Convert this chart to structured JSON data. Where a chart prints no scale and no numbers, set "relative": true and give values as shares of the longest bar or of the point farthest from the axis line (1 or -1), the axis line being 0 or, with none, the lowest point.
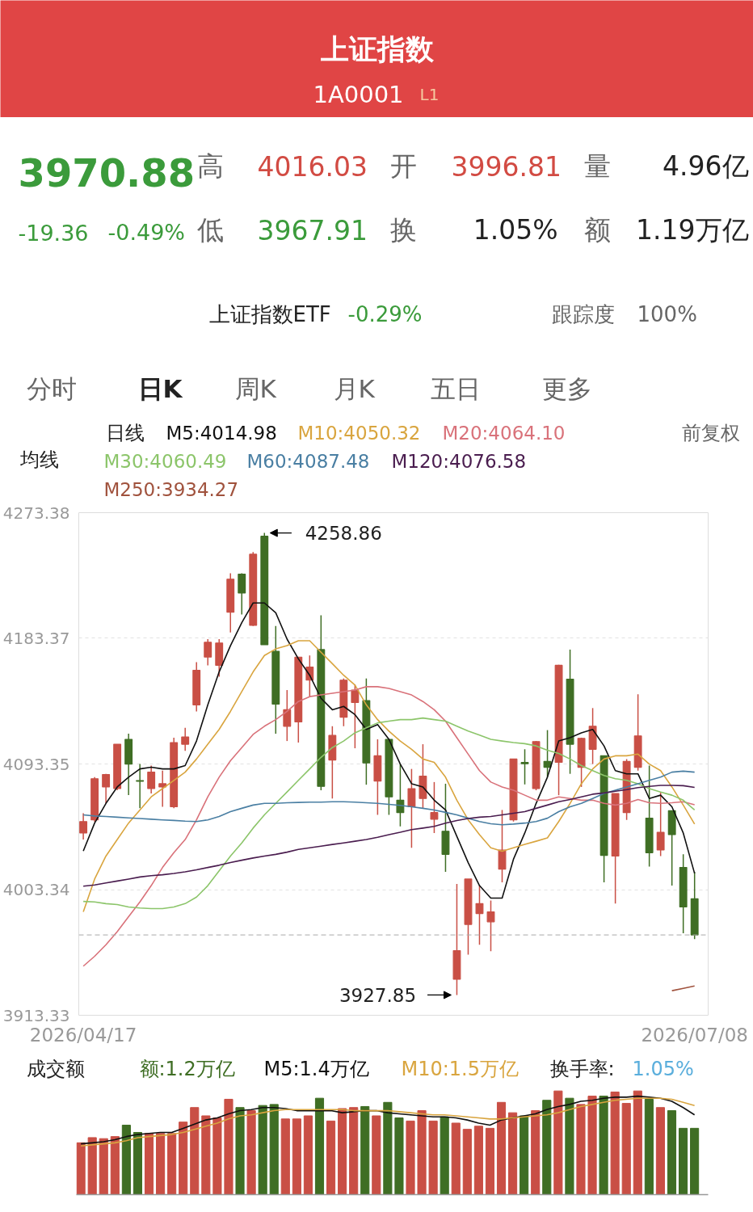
{
  "chart_data": [
    {
      "type": "other",
      "title": "上证指数",
      "subtitle": "1A0001",
      "annotations": [
        "L1",
        "3970.88",
        "-19.36",
        "-0.49%",
        "高",
        "4016.03",
        "开",
        "3996.81",
        "量",
        "4.96亿",
        "低",
        "3967.91",
        "换",
        "1.05%",
        "额",
        "1.19万亿",
        "上证指数ETF",
        "-0.29%",
        "跟踪度",
        "100%",
        "分时",
        "日K",
        "周K",
        "月K",
        "五日",
        "更多"
      ]
    },
    {
      "type": "candlestick",
      "categories": [
        "2026/04/17",
        null,
        null,
        null,
        null,
        null,
        null,
        null,
        null,
        null,
        null,
        null,
        null,
        null,
        null,
        null,
        null,
        null,
        null,
        null,
        null,
        null,
        null,
        null,
        null,
        null,
        null,
        null,
        null,
        null,
        null,
        null,
        null,
        null,
        null,
        null,
        null,
        null,
        null,
        null,
        null,
        null,
        null,
        null,
        null,
        null,
        null,
        null,
        null,
        null,
        null,
        null,
        null,
        null,
        "2026/07/08"
      ],
      "ohlc": [
        [
          4043.9,
          4058.0,
          4039.2,
          4052.1
        ],
        [
          4053.3,
          4084.0,
          4052.0,
          4082.8
        ],
        [
          4076.9,
          4086.3,
          4065.1,
          4085.8
        ],
        [
          4075.7,
          4107.5,
          4074.5,
          4107.5
        ],
        [
          4111.0,
          4115.0,
          4071.0,
          4093.3
        ],
        [
          4081.5,
          4093.3,
          4061.6,
          4081.0
        ],
        [
          4075.7,
          4092.2,
          4072.2,
          4087.5
        ],
        [
          4076.9,
          4088.6,
          4062.7,
          4079.2
        ],
        [
          4062.7,
          4112.2,
          4061.6,
          4108.7
        ],
        [
          4107.5,
          4119.2,
          4102.8,
          4112.7
        ],
        [
          4135.7,
          4166.3,
          4131.0,
          4160.5
        ],
        [
          4169.9,
          4182.8,
          4164.0,
          4180.5
        ],
        [
          4164.0,
          4182.8,
          4155.8,
          4180.0
        ],
        [
          4202.1,
          4229.9,
          4187.5,
          4225.7
        ],
        [
          4229.4,
          4229.9,
          4200.5,
          4215.8
        ],
        [
          4192.7,
          4245.2,
          4192.2,
          4243.6
        ],
        [
          4256.5,
          4258.86,
          4178.8,
          4178.8
        ],
        [
          4174.1,
          4192.2,
          4115.0,
          4136.2
        ],
        [
          4120.4,
          4146.3,
          4109.8,
          4132.2
        ],
        [
          4123.5,
          4169.9,
          4108.7,
          4169.9
        ],
        [
          4153.4,
          4171.1,
          4141.6,
          4162.8
        ],
        [
          4175.3,
          4199.8,
          4074.5,
          4077.3
        ],
        [
          4096.2,
          4120.4,
          4068.6,
          4113.8
        ],
        [
          4126.8,
          4154.6,
          4120.4,
          4153.4
        ],
        [
          4137.4,
          4150.3,
          4104.6,
          4146.3
        ],
        [
          4138.8,
          4154.6,
          4078.5,
          4094.1
        ],
        [
          4081.1,
          4111.0,
          4056.9,
          4099.2
        ],
        [
          4111.0,
          4111.0,
          4056.9,
          4069.8
        ],
        [
          4067.4,
          4093.3,
          4048.6,
          4058.5
        ],
        [
          4062.7,
          4089.8,
          4033.3,
          4075.7
        ],
        [
          4068.6,
          4107.5,
          4061.6,
          4084.6
        ],
        [
          4053.8,
          4080.4,
          4043.9,
          4058.5
        ],
        [
          4045.1,
          4079.2,
          4016.1,
          4028.6
        ],
        [
          3939.1,
          4007.4,
          3927.85,
          3959.6
        ],
        [
          3978.4,
          4010.9,
          3956.8,
          4010.9
        ],
        [
          3986.2,
          4006.2,
          3963.8,
          3993.3
        ],
        [
          3980.3,
          3995.6,
          3959.2,
          3987.4
        ],
        [
          4018.0,
          4060.4,
          4008.6,
          4031.7
        ],
        [
          4053.3,
          4096.9,
          4052.1,
          4096.9
        ],
        [
          4094.4,
          4103.9,
          4078.7,
          4093.5
        ],
        [
          4075.7,
          4109.8,
          4074.5,
          4109.4
        ],
        [
          4095.2,
          4117.6,
          4083.9,
          4091.0
        ],
        [
          4094.5,
          4164.4,
          4071.0,
          4164.0
        ],
        [
          4154.1,
          4175.3,
          4086.3,
          4107.5
        ],
        [
          4091.0,
          4112.2,
          4076.9,
          4111.7
        ],
        [
          4103.9,
          4133.4,
          4093.3,
          4120.4
        ],
        [
          4099.2,
          4099.2,
          4008.6,
          4027.9
        ],
        [
          4027.4,
          4072.2,
          3993.3,
          4072.2
        ],
        [
          4058.5,
          4096.9,
          4053.3,
          4095.2
        ],
        [
          4091.0,
          4143.3,
          4088.6,
          4113.4
        ],
        [
          4054.5,
          4092.2,
          4019.9,
          4029.8
        ],
        [
          4031.7,
          4073.3,
          4027.4,
          4044.4
        ],
        [
          4059.9,
          4059.9,
          4006.2,
          4042.7
        ],
        [
          4019.2,
          4028.6,
          3972.1,
          3990.9
        ],
        [
          3996.81,
          4016.03,
          3967.91,
          3970.88
        ]
      ],
      "colors": [
        "#c94f45",
        "#c94f45",
        "#c94f45",
        "#c94f45",
        "#3f6e24",
        "#3f6e24",
        "#c94f45",
        "#c94f45",
        "#c94f45",
        "#c94f45",
        "#c94f45",
        "#c94f45",
        "#c94f45",
        "#c94f45",
        "#3f6e24",
        "#c94f45",
        "#3f6e24",
        "#3f6e24",
        "#c94f45",
        "#c94f45",
        "#c94f45",
        "#3f6e24",
        "#c94f45",
        "#c94f45",
        "#c94f45",
        "#3f6e24",
        "#c94f45",
        "#3f6e24",
        "#3f6e24",
        "#c94f45",
        "#c94f45",
        "#c94f45",
        "#3f6e24",
        "#c94f45",
        "#c94f45",
        "#c94f45",
        "#c94f45",
        "#c94f45",
        "#c94f45",
        "#3f6e24",
        "#c94f45",
        "#3f6e24",
        "#c94f45",
        "#3f6e24",
        "#c94f45",
        "#c94f45",
        "#3f6e24",
        "#c94f45",
        "#c94f45",
        "#c94f45",
        "#3f6e24",
        "#c94f45",
        "#3f6e24",
        "#3f6e24",
        "#3f6e24"
      ],
      "series": [
        {
          "type": "line",
          "name": "M5:4014.98",
          "color": "#111111",
          "values": [
            4031.0,
            4051.0,
            4065.1,
            4076.9,
            4083.9,
            4089.8,
            4091.0,
            4089.8,
            4089.8,
            4092.2,
            4109.8,
            4135.7,
            4159.3,
            4178.1,
            4194.6,
            4208.7,
            4208.7,
            4201.7,
            4182.8,
            4168.7,
            4156.9,
            4140.4,
            4132.2,
            4134.6,
            4128.7,
            4118.1,
            4121.6,
            4111.0,
            4093.3,
            4079.2,
            4076.9,
            4067.4,
            4060.4,
            4041.5,
            4022.7,
            4006.2,
            3997.3,
            3997.3,
            4025.1,
            4043.9,
            4065.1,
            4083.9,
            4109.8,
            4112.2,
            4115.7,
            4118.1,
            4106.3,
            4088.6,
            4086.3,
            4086.3,
            4068.6,
            4071.0,
            4062.7,
            4043.9,
            4014.98
          ]
        },
        {
          "type": "line",
          "name": "M10:4050.32",
          "color": "#d9a53f",
          "values": [
            3987.4,
            4010.9,
            4027.4,
            4039.2,
            4051.0,
            4060.4,
            4069.8,
            4075.7,
            4081.6,
            4087.5,
            4096.9,
            4107.5,
            4118.1,
            4131.0,
            4145.2,
            4159.3,
            4171.1,
            4175.8,
            4178.1,
            4181.6,
            4181.6,
            4173.4,
            4165.2,
            4156.9,
            4149.9,
            4135.7,
            4125.1,
            4116.9,
            4109.8,
            4103.9,
            4096.9,
            4094.5,
            4083.9,
            4067.4,
            4053.3,
            4042.7,
            4033.3,
            4030.9,
            4033.3,
            4035.7,
            4038.0,
            4040.4,
            4052.1,
            4065.1,
            4079.2,
            4089.8,
            4096.9,
            4099.2,
            4099.2,
            4100.4,
            4093.3,
            4088.6,
            4076.9,
            4063.9,
            4050.32
          ]
        },
        {
          "type": "line",
          "name": "M20:4064.10",
          "color": "#d9727a",
          "values": [
            3948.5,
            3955.6,
            3963.8,
            3973.3,
            3983.9,
            3994.5,
            4006.2,
            4019.2,
            4029.8,
            4039.2,
            4053.3,
            4069.8,
            4083.9,
            4095.7,
            4105.1,
            4114.5,
            4120.4,
            4125.1,
            4131.0,
            4138.1,
            4141.6,
            4142.8,
            4144.0,
            4145.2,
            4146.3,
            4148.7,
            4148.7,
            4147.5,
            4145.2,
            4142.8,
            4138.1,
            4132.2,
            4124.0,
            4112.2,
            4100.4,
            4088.6,
            4080.4,
            4076.9,
            4074.5,
            4071.0,
            4067.4,
            4067.4,
            4069.8,
            4068.6,
            4067.4,
            4067.4,
            4065.1,
            4063.9,
            4065.1,
            4067.9,
            4065.6,
            4065.1,
            4065.6,
            4066.3,
            4064.1
          ]
        },
        {
          "type": "line",
          "name": "M30:4060.49",
          "color": "#8cc56a",
          "values": [
            3994.9,
            3994.5,
            3993.3,
            3992.6,
            3990.9,
            3990.2,
            3989.7,
            3989.7,
            3990.9,
            3993.3,
            3998.0,
            4006.2,
            4016.8,
            4027.4,
            4036.8,
            4047.4,
            4056.9,
            4065.1,
            4073.3,
            4081.6,
            4089.8,
            4098.1,
            4105.1,
            4109.8,
            4115.7,
            4119.2,
            4122.8,
            4124.0,
            4125.1,
            4125.1,
            4126.3,
            4125.1,
            4124.0,
            4120.4,
            4116.9,
            4114.1,
            4111.0,
            4109.8,
            4108.7,
            4107.9,
            4106.3,
            4103.2,
            4100.9,
            4096.9,
            4092.2,
            4088.6,
            4085.1,
            4082.8,
            4081.6,
            4079.2,
            4075.7,
            4073.3,
            4071.0,
            4067.4,
            4060.49
          ]
        },
        {
          "type": "line",
          "name": "M60:4087.48",
          "color": "#4a7fa3",
          "values": [
            4056.9,
            4056.1,
            4055.7,
            4055.2,
            4054.7,
            4054.3,
            4053.8,
            4053.3,
            4052.9,
            4052.4,
            4052.1,
            4053.3,
            4055.7,
            4059.2,
            4061.6,
            4063.9,
            4065.1,
            4065.1,
            4065.6,
            4065.8,
            4066.0,
            4066.0,
            4066.3,
            4066.3,
            4066.0,
            4065.6,
            4065.1,
            4064.4,
            4063.7,
            4062.7,
            4061.6,
            4060.4,
            4058.7,
            4056.9,
            4054.5,
            4052.1,
            4050.5,
            4049.8,
            4050.3,
            4051.0,
            4052.1,
            4054.5,
            4059.2,
            4062.7,
            4065.1,
            4068.6,
            4072.2,
            4074.5,
            4076.9,
            4079.2,
            4081.6,
            4083.9,
            4087.5,
            4088.2,
            4087.48
          ]
        },
        {
          "type": "line",
          "name": "M120:4076.58",
          "color": "#4a1d4f",
          "values": [
            4005.8,
            4006.7,
            4008.1,
            4009.5,
            4010.9,
            4012.4,
            4013.3,
            4014.0,
            4014.9,
            4016.1,
            4017.5,
            4019.2,
            4020.8,
            4022.7,
            4024.4,
            4026.0,
            4027.4,
            4028.6,
            4030.2,
            4032.1,
            4033.3,
            4034.5,
            4035.7,
            4036.8,
            4038.0,
            4039.2,
            4040.8,
            4042.7,
            4044.4,
            4046.3,
            4047.4,
            4048.6,
            4051.0,
            4052.8,
            4054.3,
            4055.2,
            4055.7,
            4056.9,
            4058.0,
            4059.2,
            4061.6,
            4063.9,
            4066.3,
            4067.9,
            4069.8,
            4071.7,
            4072.6,
            4073.8,
            4075.0,
            4076.4,
            4077.3,
            4078.0,
            4078.0,
            4077.8,
            4076.58
          ]
        },
        {
          "type": "line",
          "name": "M250:3934.27",
          "color": "#a0523d",
          "values": [
            null,
            null,
            null,
            null,
            null,
            null,
            null,
            null,
            null,
            null,
            null,
            null,
            null,
            null,
            null,
            null,
            null,
            null,
            null,
            null,
            null,
            null,
            null,
            null,
            null,
            null,
            null,
            null,
            null,
            null,
            null,
            null,
            null,
            null,
            null,
            null,
            null,
            null,
            null,
            null,
            null,
            null,
            null,
            null,
            null,
            null,
            null,
            null,
            null,
            null,
            null,
            null,
            3930.9,
            3932.6,
            3934.27
          ]
        }
      ],
      "ylim": [
        3913.33,
        4273.38
      ],
      "yticks": [
        4273.38,
        4183.37,
        4093.35,
        4003.34,
        3913.33
      ],
      "grid": "y",
      "legend": "top",
      "ref_lines": [
        {
          "axis": "y",
          "value": 3970.88,
          "color": "#aaaaaa",
          "line_style": "dashed"
        }
      ],
      "annotations": [
        "均线",
        "日线",
        "前复权",
        "4258.86",
        "3927.85"
      ]
    },
    {
      "type": "bar",
      "relative": true,
      "tick_labels": false,
      "categories": [
        "2026/04/17",
        null,
        null,
        null,
        null,
        null,
        null,
        null,
        null,
        null,
        null,
        null,
        null,
        null,
        null,
        null,
        null,
        null,
        null,
        null,
        null,
        null,
        null,
        null,
        null,
        null,
        null,
        null,
        null,
        null,
        null,
        null,
        null,
        null,
        null,
        null,
        null,
        null,
        null,
        null,
        null,
        null,
        null,
        null,
        null,
        null,
        null,
        null,
        null,
        null,
        null,
        null,
        null,
        null,
        "2026/07/08"
      ],
      "series": [
        {
          "name": "额:1.2万亿",
          "color": "#3f6e24",
          "colors": [
            "#c94f45",
            "#c94f45",
            "#c94f45",
            "#c94f45",
            "#3f6e24",
            "#3f6e24",
            "#c94f45",
            "#c94f45",
            "#c94f45",
            "#c94f45",
            "#c94f45",
            "#c94f45",
            "#c94f45",
            "#c94f45",
            "#3f6e24",
            "#c94f45",
            "#3f6e24",
            "#3f6e24",
            "#c94f45",
            "#c94f45",
            "#c94f45",
            "#3f6e24",
            "#c94f45",
            "#c94f45",
            "#c94f45",
            "#3f6e24",
            "#c94f45",
            "#3f6e24",
            "#3f6e24",
            "#c94f45",
            "#c94f45",
            "#c94f45",
            "#3f6e24",
            "#c94f45",
            "#c94f45",
            "#c94f45",
            "#c94f45",
            "#c94f45",
            "#c94f45",
            "#3f6e24",
            "#c94f45",
            "#3f6e24",
            "#c94f45",
            "#3f6e24",
            "#c94f45",
            "#c94f45",
            "#3f6e24",
            "#c94f45",
            "#c94f45",
            "#c94f45",
            "#3f6e24",
            "#c94f45",
            "#3f6e24",
            "#3f6e24",
            "#3f6e24"
          ],
          "values": [
            0.5,
            0.55,
            0.54,
            0.56,
            0.67,
            0.6,
            0.59,
            0.59,
            0.59,
            0.7,
            0.84,
            0.76,
            0.74,
            0.92,
            0.84,
            0.81,
            0.86,
            0.87,
            0.73,
            0.73,
            0.76,
            0.93,
            0.71,
            0.83,
            0.84,
            0.85,
            0.76,
            0.89,
            0.74,
            0.71,
            0.81,
            0.71,
            0.75,
            0.69,
            0.63,
            0.66,
            0.64,
            0.89,
            0.79,
            0.76,
            0.81,
            0.91,
            1,
            0.93,
            0.87,
            0.95,
            0.95,
            0.99,
            0.88,
            1,
            0.92,
            0.84,
            0.81,
            0.64,
            0.64
          ]
        },
        {
          "type": "line",
          "name": "M5:1.4万亿",
          "color": "#111111",
          "values": [
            0.49,
            0.5,
            0.51,
            0.53,
            0.56,
            0.58,
            0.59,
            0.6,
            0.6,
            0.64,
            0.68,
            0.72,
            0.74,
            0.78,
            0.81,
            0.82,
            0.84,
            0.84,
            0.83,
            0.81,
            0.81,
            0.81,
            0.81,
            0.79,
            0.8,
            0.81,
            0.81,
            0.79,
            0.78,
            0.77,
            0.76,
            0.75,
            0.75,
            0.74,
            0.72,
            0.69,
            0.67,
            0.72,
            0.74,
            0.76,
            0.78,
            0.82,
            0.85,
            0.87,
            0.9,
            0.91,
            0.93,
            0.94,
            0.94,
            0.95,
            0.94,
            0.93,
            0.9,
            0.84,
            0.77
          ]
        },
        {
          "type": "line",
          "name": "M10:1.5万亿",
          "color": "#d9a53f",
          "values": [
            0.47,
            0.48,
            0.49,
            0.5,
            0.52,
            0.55,
            0.56,
            0.57,
            0.58,
            0.6,
            0.63,
            0.66,
            0.69,
            0.73,
            0.76,
            0.77,
            0.79,
            0.81,
            0.82,
            0.82,
            0.82,
            0.82,
            0.82,
            0.82,
            0.81,
            0.81,
            0.81,
            0.81,
            0.8,
            0.79,
            0.78,
            0.77,
            0.77,
            0.76,
            0.75,
            0.74,
            0.73,
            0.73,
            0.74,
            0.75,
            0.76,
            0.77,
            0.79,
            0.82,
            0.85,
            0.87,
            0.89,
            0.91,
            0.92,
            0.93,
            0.93,
            0.93,
            0.92,
            0.89,
            0.86
          ]
        }
      ],
      "annotations": [
        "成交额",
        "换手率:",
        "1.05%"
      ]
    }
  ]
}
